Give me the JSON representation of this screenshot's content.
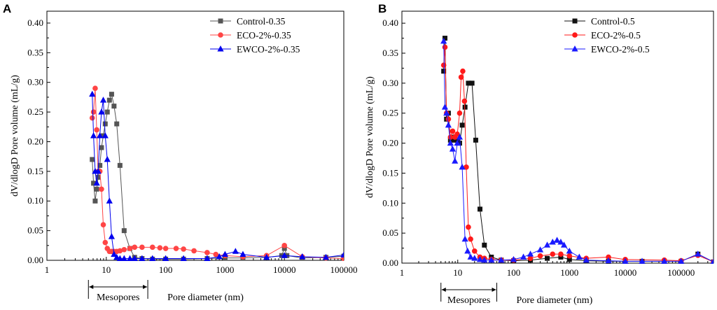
{
  "chart_data": [
    {
      "panel": "A",
      "type": "line",
      "xscale": "log",
      "xlim": [
        1,
        100000
      ],
      "ylim": [
        0,
        0.42
      ],
      "xticks": [
        1,
        10,
        100,
        1000,
        10000,
        100000
      ],
      "xtick_labels": [
        "1",
        "10",
        "100",
        "1000",
        "10000",
        "100000"
      ],
      "yticks": [
        0,
        0.05,
        0.1,
        0.15,
        0.2,
        0.25,
        0.3,
        0.35,
        0.4
      ],
      "ytick_labels": [
        "0.00",
        "0.05",
        "0.10",
        "0.15",
        "0.20",
        "0.25",
        "0.30",
        "0.35",
        "0.40"
      ],
      "xlabel": "Pore diameter (nm)",
      "ylabel": "dV/dlogD Pore volume (mL/g)",
      "mesopore_label": "Mesopores",
      "mesopore_range": [
        5,
        50
      ],
      "legend_position": "top-right",
      "series": [
        {
          "name": "Control-0.35",
          "color": "#555555",
          "marker": "square",
          "x": [
            5.8,
            6.1,
            6.5,
            6.9,
            7.3,
            7.8,
            8.3,
            8.9,
            9.6,
            10.4,
            11.3,
            12.3,
            13.5,
            15,
            17,
            20,
            25,
            30,
            40,
            60,
            100,
            200,
            500,
            1000,
            2000,
            5000,
            9000,
            10000,
            11000,
            20000,
            50000,
            100000
          ],
          "y": [
            0.17,
            0.13,
            0.1,
            0.12,
            0.14,
            0.16,
            0.19,
            0.21,
            0.23,
            0.25,
            0.27,
            0.28,
            0.26,
            0.23,
            0.16,
            0.05,
            0.02,
            0.005,
            0.003,
            0.002,
            0.002,
            0.002,
            0.003,
            0.004,
            0.004,
            0.005,
            0.008,
            0.02,
            0.008,
            0.004,
            0.005,
            0.007
          ]
        },
        {
          "name": "ECO-2%-0.35",
          "color": "#ff4545",
          "marker": "circle",
          "x": [
            5.8,
            6.1,
            6.5,
            6.9,
            7.3,
            7.8,
            8.3,
            8.9,
            9.6,
            10.4,
            11.3,
            12.3,
            13.5,
            15,
            17,
            20,
            25,
            30,
            40,
            60,
            80,
            100,
            150,
            200,
            300,
            500,
            700,
            1000,
            2000,
            5000,
            10000,
            20000,
            50000,
            100000
          ],
          "y": [
            0.24,
            0.25,
            0.29,
            0.22,
            0.15,
            0.15,
            0.12,
            0.06,
            0.03,
            0.02,
            0.015,
            0.015,
            0.015,
            0.015,
            0.016,
            0.018,
            0.02,
            0.022,
            0.022,
            0.022,
            0.021,
            0.02,
            0.02,
            0.019,
            0.016,
            0.013,
            0.01,
            0.008,
            0.006,
            0.008,
            0.025,
            0.006,
            0.004,
            0.003
          ]
        },
        {
          "name": "EWCO-2%-0.35",
          "color": "#0000ee",
          "marker": "triangle",
          "x": [
            5.8,
            6.1,
            6.5,
            6.9,
            7.3,
            7.8,
            8.3,
            8.9,
            9.6,
            10.4,
            11.3,
            12.3,
            13.5,
            15,
            17,
            20,
            25,
            30,
            40,
            60,
            100,
            200,
            500,
            800,
            1000,
            1500,
            2000,
            5000,
            10000,
            20000,
            50000,
            100000
          ],
          "y": [
            0.28,
            0.21,
            0.15,
            0.13,
            0.15,
            0.21,
            0.25,
            0.27,
            0.21,
            0.17,
            0.1,
            0.04,
            0.01,
            0.005,
            0.003,
            0.003,
            0.003,
            0.003,
            0.003,
            0.003,
            0.003,
            0.003,
            0.003,
            0.006,
            0.01,
            0.015,
            0.01,
            0.005,
            0.008,
            0.006,
            0.005,
            0.009
          ]
        }
      ]
    },
    {
      "panel": "B",
      "type": "line",
      "xscale": "log",
      "xlim": [
        1,
        380000
      ],
      "ylim": [
        0,
        0.42
      ],
      "xticks": [
        1,
        10,
        100,
        1000,
        10000,
        100000
      ],
      "xtick_labels": [
        "1",
        "10",
        "100",
        "1000",
        "10000",
        "100000"
      ],
      "yticks": [
        0,
        0.05,
        0.1,
        0.15,
        0.2,
        0.25,
        0.3,
        0.35,
        0.4
      ],
      "ytick_labels": [
        "0.00",
        "0.05",
        "0.10",
        "0.15",
        "0.20",
        "0.25",
        "0.30",
        "0.35",
        "0.40"
      ],
      "xlabel": "Pore diameter (nm)",
      "ylabel": "dV/dlogD Pore volume (mL/g)",
      "mesopore_label": "Mesopores",
      "mesopore_range": [
        5,
        50
      ],
      "legend_position": "top-right",
      "series": [
        {
          "name": "Control-0.5",
          "color": "#111111",
          "marker": "square",
          "x": [
            5.6,
            5.9,
            6.3,
            6.8,
            7.4,
            8.1,
            8.9,
            9.8,
            10.8,
            12,
            13.5,
            15.5,
            18,
            21,
            25,
            30,
            40,
            60,
            100,
            200,
            400,
            700,
            1000,
            2000,
            5000,
            10000,
            20000,
            50000,
            100000,
            200000,
            380000
          ],
          "y": [
            0.32,
            0.375,
            0.24,
            0.25,
            0.205,
            0.21,
            0.205,
            0.205,
            0.2,
            0.23,
            0.26,
            0.3,
            0.3,
            0.205,
            0.09,
            0.03,
            0.01,
            0.005,
            0.004,
            0.005,
            0.008,
            0.01,
            0.006,
            0.004,
            0.003,
            0.003,
            0.003,
            0.003,
            0.003,
            0.015,
            0.002
          ]
        },
        {
          "name": "ECO-2%-0.5",
          "color": "#ff1a1a",
          "marker": "circle",
          "x": [
            5.6,
            5.9,
            6.3,
            6.8,
            7.4,
            8.1,
            8.9,
            9.8,
            10.8,
            11.5,
            12.3,
            13.2,
            14.2,
            15.5,
            17,
            20,
            25,
            30,
            40,
            60,
            100,
            200,
            300,
            500,
            700,
            1000,
            2000,
            5000,
            10000,
            50000,
            100000,
            200000,
            380000
          ],
          "y": [
            0.33,
            0.36,
            0.25,
            0.24,
            0.21,
            0.22,
            0.21,
            0.215,
            0.25,
            0.31,
            0.32,
            0.27,
            0.16,
            0.06,
            0.04,
            0.02,
            0.01,
            0.008,
            0.006,
            0.005,
            0.005,
            0.008,
            0.012,
            0.015,
            0.015,
            0.012,
            0.008,
            0.01,
            0.006,
            0.005,
            0.004,
            0.013,
            0.002
          ]
        },
        {
          "name": "EWCO-2%-0.5",
          "color": "#1a1aff",
          "marker": "triangle",
          "x": [
            5.6,
            5.9,
            6.3,
            6.8,
            7.4,
            8.1,
            8.9,
            9.8,
            10.8,
            12,
            13.5,
            15,
            17,
            20,
            25,
            30,
            40,
            60,
            100,
            150,
            200,
            300,
            400,
            500,
            600,
            700,
            800,
            1000,
            1500,
            2000,
            5000,
            10000,
            20000,
            50000,
            100000,
            200000,
            380000
          ],
          "y": [
            0.37,
            0.26,
            0.25,
            0.23,
            0.2,
            0.19,
            0.17,
            0.2,
            0.21,
            0.16,
            0.04,
            0.02,
            0.01,
            0.008,
            0.006,
            0.005,
            0.005,
            0.005,
            0.006,
            0.01,
            0.015,
            0.022,
            0.03,
            0.035,
            0.038,
            0.035,
            0.03,
            0.02,
            0.01,
            0.005,
            0.004,
            0.003,
            0.003,
            0.003,
            0.003,
            0.015,
            0.002
          ]
        }
      ]
    }
  ]
}
